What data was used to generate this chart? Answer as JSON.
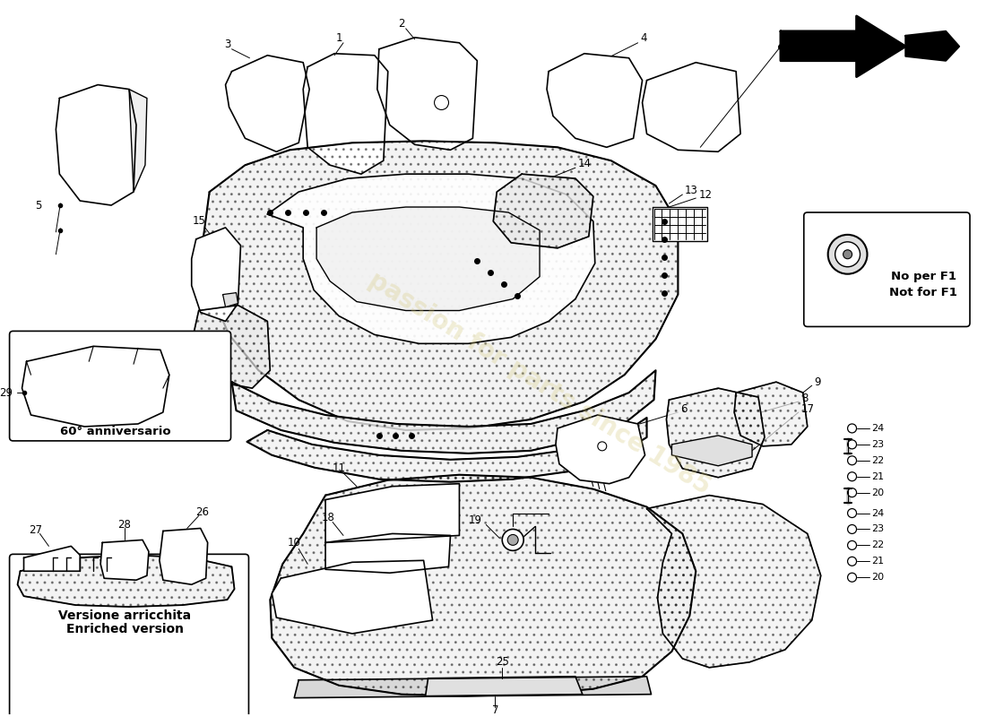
{
  "bg_color": "#ffffff",
  "line_color": "#000000",
  "watermark_color": "#d4c87a",
  "watermark_text": "passion for parts since 1985",
  "watermark_alpha": 0.3,
  "callout_box1_label": "60° anniversario",
  "callout_box2_label1": "Versione arricchita",
  "callout_box2_label2": "Enriched version",
  "f1_box_label1": "No per F1",
  "f1_box_label2": "Not for F1"
}
